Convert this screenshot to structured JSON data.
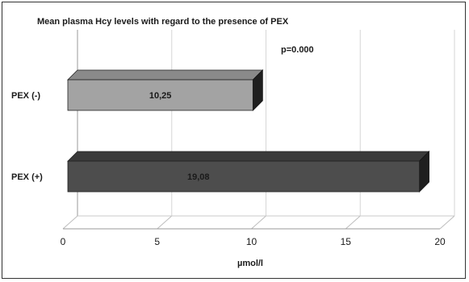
{
  "chart_data": {
    "type": "bar",
    "orientation": "horizontal",
    "title": "Mean plasma Hcy levels with regard to the presence of PEX",
    "categories": [
      "PEX (-)",
      "PEX (+)"
    ],
    "values": [
      10.25,
      19.08
    ],
    "value_labels": [
      "10,25",
      "19,08"
    ],
    "bar_colors": [
      "#a3a3a3",
      "#4d4d4d"
    ],
    "xlim": [
      0,
      20
    ],
    "xticks": [
      0,
      5,
      10,
      15,
      20
    ],
    "xlabel": "µmol/l",
    "annotation": "p=0.000",
    "grid": true,
    "legend": "none"
  }
}
